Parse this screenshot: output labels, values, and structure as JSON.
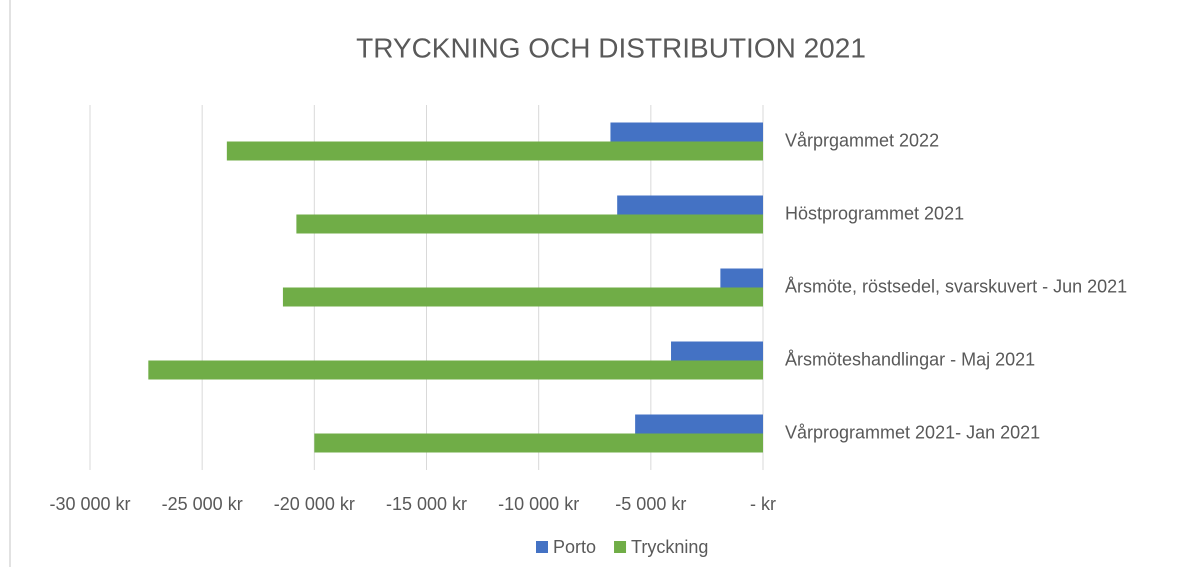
{
  "chart_data": {
    "type": "bar",
    "orientation": "horizontal",
    "title": "TRYCKNING OCH DISTRIBUTION 2021",
    "categories": [
      "Vårprgammet 2022",
      "Höstprogrammet 2021",
      "Årsmöte, röstsedel, svarskuvert - Jun 2021",
      "Årsmöteshandlingar - Maj 2021",
      "Vårprogrammet 2021- Jan 2021"
    ],
    "series": [
      {
        "name": "Porto",
        "color": "#4472c4",
        "values": [
          -6800,
          -6500,
          -1900,
          -4100,
          -5700
        ]
      },
      {
        "name": "Tryckning",
        "color": "#70ad47",
        "values": [
          -23900,
          -20800,
          -21400,
          -27400,
          -20000
        ]
      }
    ],
    "xlim": [
      -30000,
      0
    ],
    "xticks": [
      {
        "value": -30000,
        "label": "-30 000 kr"
      },
      {
        "value": -25000,
        "label": "-25 000 kr"
      },
      {
        "value": -20000,
        "label": "-20 000 kr"
      },
      {
        "value": -15000,
        "label": "-15 000 kr"
      },
      {
        "value": -10000,
        "label": "-10 000 kr"
      },
      {
        "value": -5000,
        "label": "-5 000 kr"
      },
      {
        "value": 0,
        "label": "-   kr"
      }
    ],
    "grid": true,
    "legend": "bottom"
  }
}
